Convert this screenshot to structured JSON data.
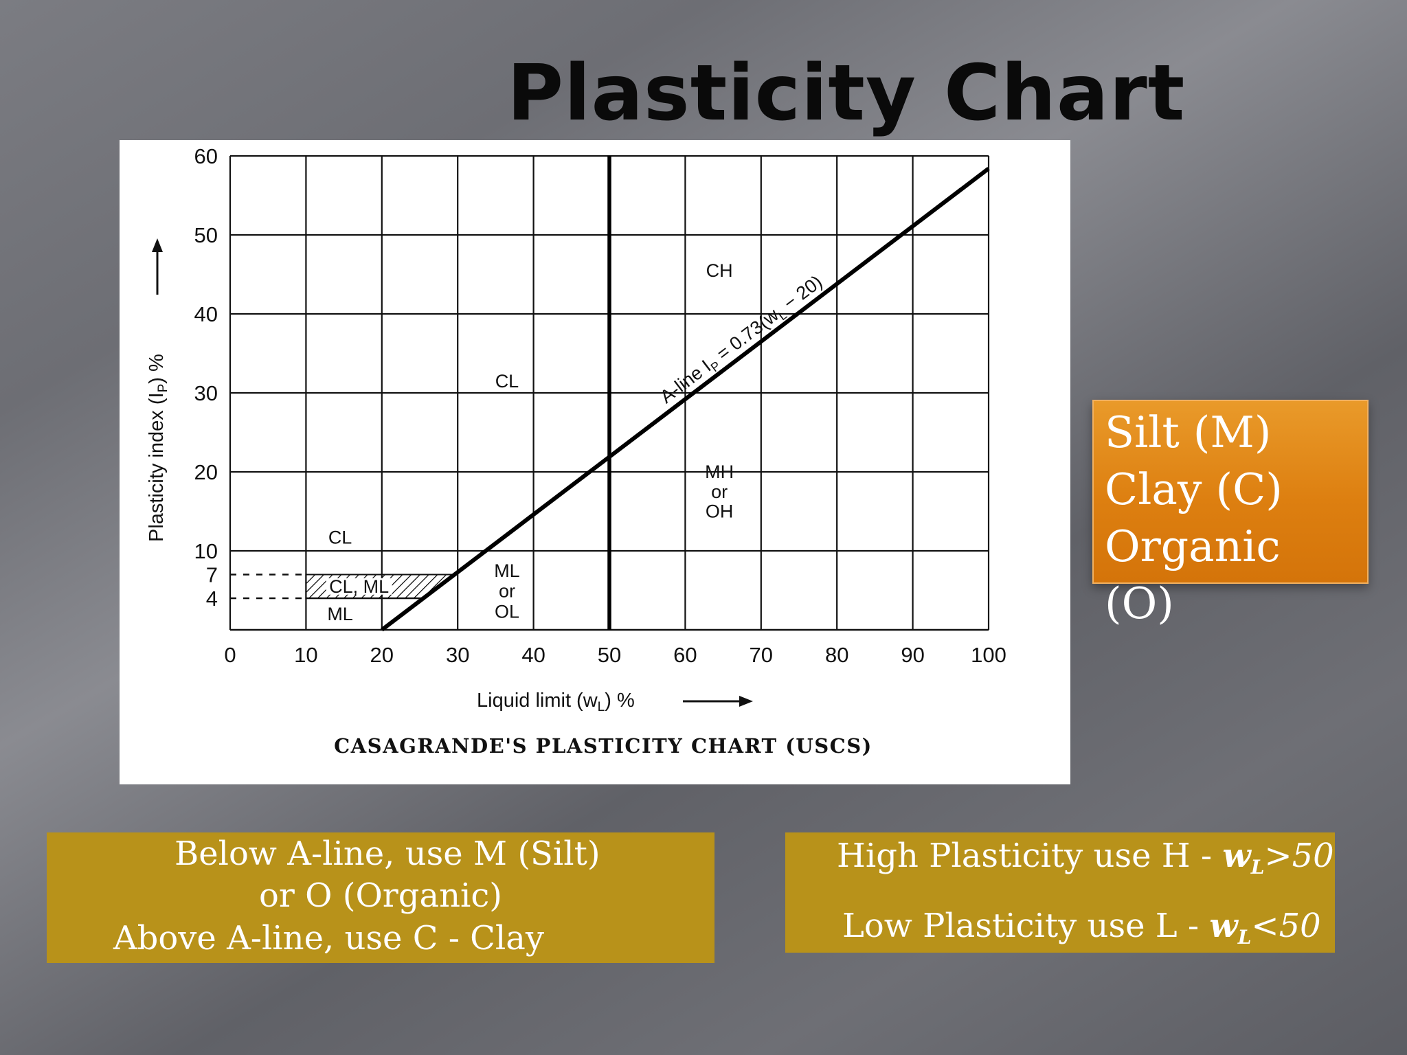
{
  "slide": {
    "title": "Plasticity Chart"
  },
  "chart_data": {
    "type": "line",
    "title": "CASAGRANDE'S PLASTICITY CHART (USCS)",
    "xlabel": "Liquid limit (w",
    "xlabel_sub": "L",
    "xlabel_tail": ") %",
    "ylabel": "Plasticity index (I",
    "ylabel_sub": "P",
    "ylabel_tail": ") %",
    "xlim": [
      0,
      100
    ],
    "ylim": [
      0,
      60
    ],
    "x_ticks": [
      0,
      10,
      20,
      30,
      40,
      50,
      60,
      70,
      80,
      90,
      100
    ],
    "y_ticks": [
      4,
      7,
      10,
      20,
      30,
      40,
      50,
      60
    ],
    "grid": true,
    "a_line": {
      "label": "A-line I",
      "label_sub": "P",
      "label_tail": " = 0.73(w",
      "label_sub2": "L",
      "label_end": " − 20)",
      "slope": 0.73,
      "intercept_x": 20,
      "x": [
        20,
        100
      ],
      "y": [
        0,
        58.4
      ]
    },
    "divider": {
      "x": 50
    },
    "hatched_zone": {
      "y_from": 4,
      "y_to": 7,
      "x_from": 10
    },
    "zones": [
      {
        "label": "CH",
        "x": 64.5,
        "y": 45.5
      },
      {
        "label": "CL",
        "x": 36.5,
        "y": 31.5
      },
      {
        "label": "CL",
        "x": 14.5,
        "y": 11.7
      },
      {
        "label": "CL, ML",
        "x": 17.0,
        "y": 5.5
      },
      {
        "label": "ML",
        "x": 14.5,
        "y": 2.0
      },
      {
        "label": "ML",
        "x": 36.5,
        "y": 7.5
      },
      {
        "label": "or",
        "x": 36.5,
        "y": 4.9
      },
      {
        "label": "OL",
        "x": 36.5,
        "y": 2.3
      },
      {
        "label": "MH",
        "x": 64.5,
        "y": 20.0
      },
      {
        "label": "or",
        "x": 64.5,
        "y": 17.5
      },
      {
        "label": "OH",
        "x": 64.5,
        "y": 15.0
      }
    ]
  },
  "legend": {
    "items": [
      "Silt (M)",
      "Clay (C)",
      "Organic",
      "(O)"
    ]
  },
  "notes": {
    "left": {
      "line1": "Below A-line, use M (Silt)",
      "line2": "or  O (Organic)",
      "line3": "Above A-line, use C - Clay"
    },
    "right": {
      "high_text": "High Plasticity use H - ",
      "low_text": "Low Plasticity use L - ",
      "w": "w",
      "w_sub": "L",
      "high_cond": ">50",
      "low_cond": "<50"
    }
  }
}
